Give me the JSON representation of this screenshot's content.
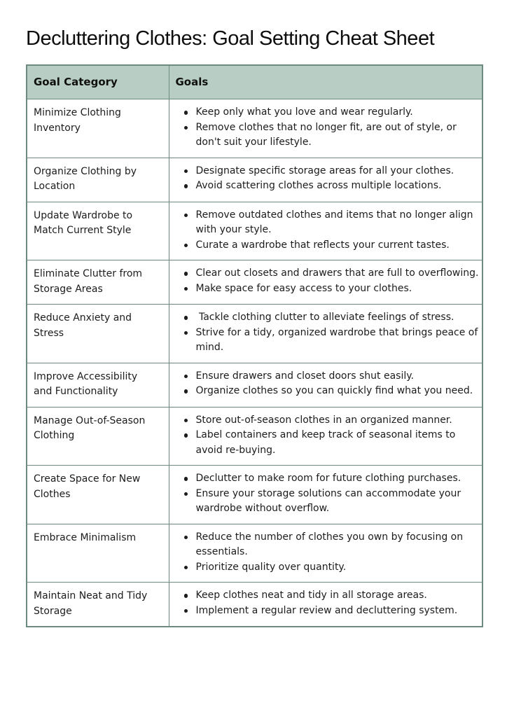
{
  "page": {
    "title": "Decluttering Clothes: Goal Setting Cheat Sheet"
  },
  "table": {
    "headers": {
      "category": "Goal Category",
      "goals": "Goals"
    },
    "rows": [
      {
        "category": "Minimize Clothing Inventory",
        "goals": [
          "Keep only what you love and wear regularly.",
          "Remove clothes that no longer fit, are out of style, or don't suit your lifestyle."
        ]
      },
      {
        "category": "Organize Clothing by Location",
        "goals": [
          "Designate specific storage areas for all your clothes.",
          "Avoid scattering clothes across multiple locations."
        ]
      },
      {
        "category": "Update Wardrobe to Match Current Style",
        "goals": [
          "Remove outdated clothes and items that no longer align with your style.",
          "Curate a wardrobe that reflects your current tastes."
        ]
      },
      {
        "category": "Eliminate Clutter from Storage Areas",
        "goals": [
          "Clear out closets and drawers that are full to overflowing.",
          "Make space for easy access to your clothes."
        ]
      },
      {
        "category": "Reduce Anxiety and Stress",
        "goals": [
          " Tackle clothing clutter to alleviate feelings of stress.",
          "Strive for a tidy, organized wardrobe that brings peace of mind."
        ]
      },
      {
        "category": "Improve Accessibility and Functionality",
        "goals": [
          "Ensure drawers and closet doors shut easily.",
          "Organize clothes so you can quickly find what you need."
        ]
      },
      {
        "category": "Manage Out-of-Season Clothing",
        "goals": [
          "Store out-of-season clothes in an organized manner.",
          "Label containers and keep track of seasonal items to avoid re-buying."
        ]
      },
      {
        "category": "Create Space for New Clothes",
        "goals": [
          "Declutter to make room for future clothing purchases.",
          "Ensure your storage solutions can accommodate your wardrobe without overflow."
        ]
      },
      {
        "category": "Embrace Minimalism",
        "goals": [
          "Reduce the number of clothes you own by focusing on essentials.",
          "Prioritize quality over quantity."
        ]
      },
      {
        "category": "Maintain Neat and Tidy Storage",
        "goals": [
          "Keep clothes neat and tidy in all storage areas.",
          "Implement a regular review and decluttering system."
        ]
      }
    ]
  },
  "colors": {
    "header_bg": "#b8cec4",
    "border": "#6d8a7e",
    "text": "#1c1c1c",
    "title": "#0d0d0d",
    "page_bg": "#ffffff"
  }
}
